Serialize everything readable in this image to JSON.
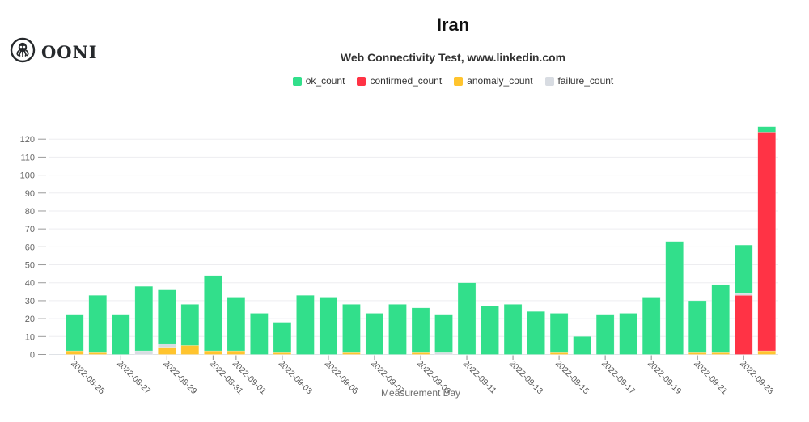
{
  "logo": {
    "text": "OONI"
  },
  "title": "Iran",
  "subtitle": "Web Connectivity Test, www.linkedin.com",
  "legend": [
    {
      "label": "ok_count",
      "color": "#32df8b"
    },
    {
      "label": "confirmed_count",
      "color": "#ff3345"
    },
    {
      "label": "anomaly_count",
      "color": "#ffc42e"
    },
    {
      "label": "failure_count",
      "color": "#d8dce2"
    }
  ],
  "chart_data": {
    "type": "bar",
    "stacked": true,
    "title": "Iran",
    "subtitle": "Web Connectivity Test, www.linkedin.com",
    "xlabel": "Measurement Day",
    "ylabel": "",
    "ylim": [
      0,
      130
    ],
    "ytick_step": 10,
    "ytick_max_labeled": 120,
    "grid": true,
    "legend_position": "top",
    "categories": [
      "2022-08-25",
      "2022-08-26",
      "2022-08-27",
      "2022-08-28",
      "2022-08-29",
      "2022-08-30",
      "2022-08-31",
      "2022-09-01",
      "2022-09-02",
      "2022-09-03",
      "2022-09-04",
      "2022-09-05",
      "2022-09-06",
      "2022-09-07",
      "2022-09-08",
      "2022-09-09",
      "2022-09-10",
      "2022-09-11",
      "2022-09-12",
      "2022-09-13",
      "2022-09-14",
      "2022-09-15",
      "2022-09-16",
      "2022-09-17",
      "2022-09-18",
      "2022-09-19",
      "2022-09-20",
      "2022-09-21",
      "2022-09-22",
      "2022-09-23",
      "2022-09-24"
    ],
    "labeled_ticks": [
      "2022-08-25",
      "2022-08-27",
      "2022-08-29",
      "2022-08-31",
      "2022-09-01",
      "2022-09-03",
      "2022-09-05",
      "2022-09-07",
      "2022-09-09",
      "2022-09-11",
      "2022-09-13",
      "2022-09-15",
      "2022-09-17",
      "2022-09-19",
      "2022-09-21",
      "2022-09-23"
    ],
    "stack_order_bottom_to_top": [
      "anomaly_count",
      "confirmed_count",
      "failure_count",
      "ok_count"
    ],
    "series": [
      {
        "name": "ok_count",
        "color": "#32df8b",
        "values": [
          20,
          32,
          22,
          36,
          30,
          23,
          42,
          30,
          23,
          17,
          33,
          32,
          27,
          23,
          28,
          25,
          21,
          40,
          27,
          28,
          24,
          22,
          10,
          22,
          23,
          32,
          63,
          29,
          38,
          27,
          3
        ]
      },
      {
        "name": "confirmed_count",
        "color": "#ff3345",
        "values": [
          0,
          0,
          0,
          0,
          0,
          0,
          0,
          0,
          0,
          0,
          0,
          0,
          0,
          0,
          0,
          0,
          0,
          0,
          0,
          0,
          0,
          0,
          0,
          0,
          0,
          0,
          0,
          0,
          0,
          33,
          122
        ]
      },
      {
        "name": "anomaly_count",
        "color": "#ffc42e",
        "values": [
          2,
          1,
          0,
          0,
          4,
          5,
          2,
          2,
          0,
          1,
          0,
          0,
          1,
          0,
          0,
          1,
          0,
          0,
          0,
          0,
          0,
          1,
          0,
          0,
          0,
          0,
          0,
          1,
          1,
          0,
          2
        ]
      },
      {
        "name": "failure_count",
        "color": "#d8dce2",
        "values": [
          0,
          0,
          0,
          2,
          2,
          0,
          0,
          0,
          0,
          0,
          0,
          0,
          0,
          0,
          0,
          0,
          1,
          0,
          0,
          0,
          0,
          0,
          0,
          0,
          0,
          0,
          0,
          0,
          0,
          1,
          0
        ]
      }
    ]
  }
}
